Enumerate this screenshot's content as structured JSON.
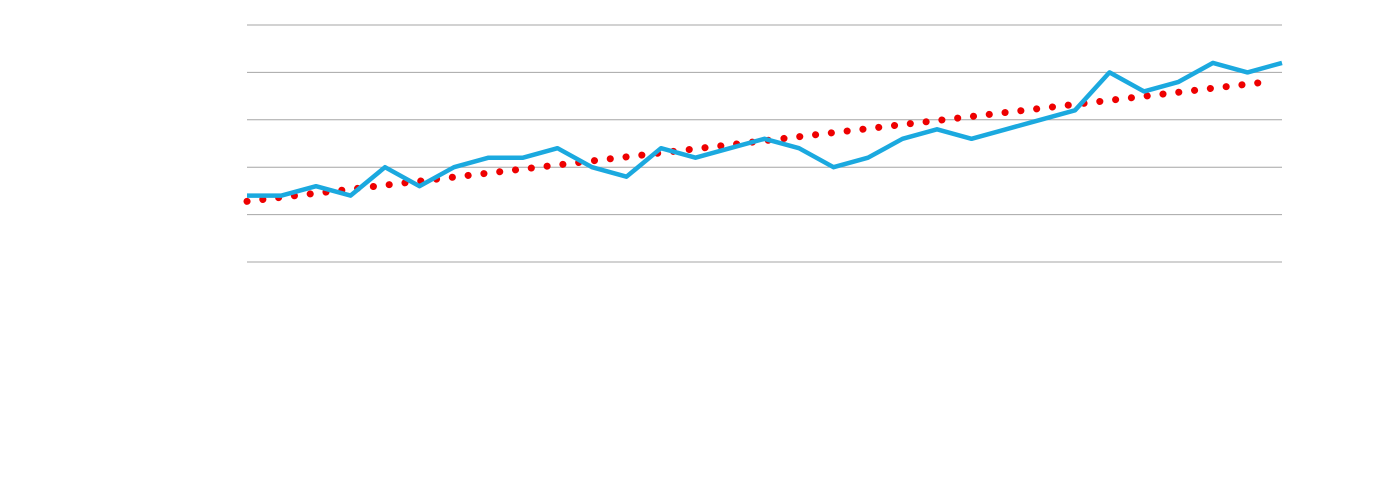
{
  "chart_data": {
    "type": "line",
    "title": "",
    "xlabel": "",
    "ylabel": "",
    "ylim": [
      0,
      5
    ],
    "y_gridlines": [
      0,
      1,
      2,
      3,
      4,
      5
    ],
    "grid": true,
    "x_tick_labels_visible": false,
    "y_tick_labels_visible": false,
    "legend": "none",
    "x": [
      1,
      2,
      3,
      4,
      5,
      6,
      7,
      8,
      9,
      10,
      11,
      12,
      13,
      14,
      15,
      16,
      17,
      18,
      19,
      20,
      21,
      22,
      23,
      24,
      25,
      26,
      27,
      28,
      29,
      30,
      31
    ],
    "series": [
      {
        "style": "solid",
        "color": "#1ba9df",
        "values": [
          1.4,
          1.4,
          1.6,
          1.4,
          2.0,
          1.6,
          2.0,
          2.2,
          2.2,
          2.4,
          2.0,
          1.8,
          2.4,
          2.2,
          2.4,
          2.6,
          2.4,
          2.0,
          2.2,
          2.6,
          2.8,
          2.6,
          2.8,
          3.0,
          3.2,
          4.0,
          3.6,
          3.8,
          4.2,
          4.0,
          4.2
        ]
      },
      {
        "style": "dotted",
        "type": "linear-trendline",
        "color": "#ee0000",
        "start": [
          1,
          1.28
        ],
        "end": [
          31,
          3.8
        ]
      }
    ],
    "colors": {
      "grid": "#a6a6a6",
      "background": "#ffffff"
    }
  }
}
